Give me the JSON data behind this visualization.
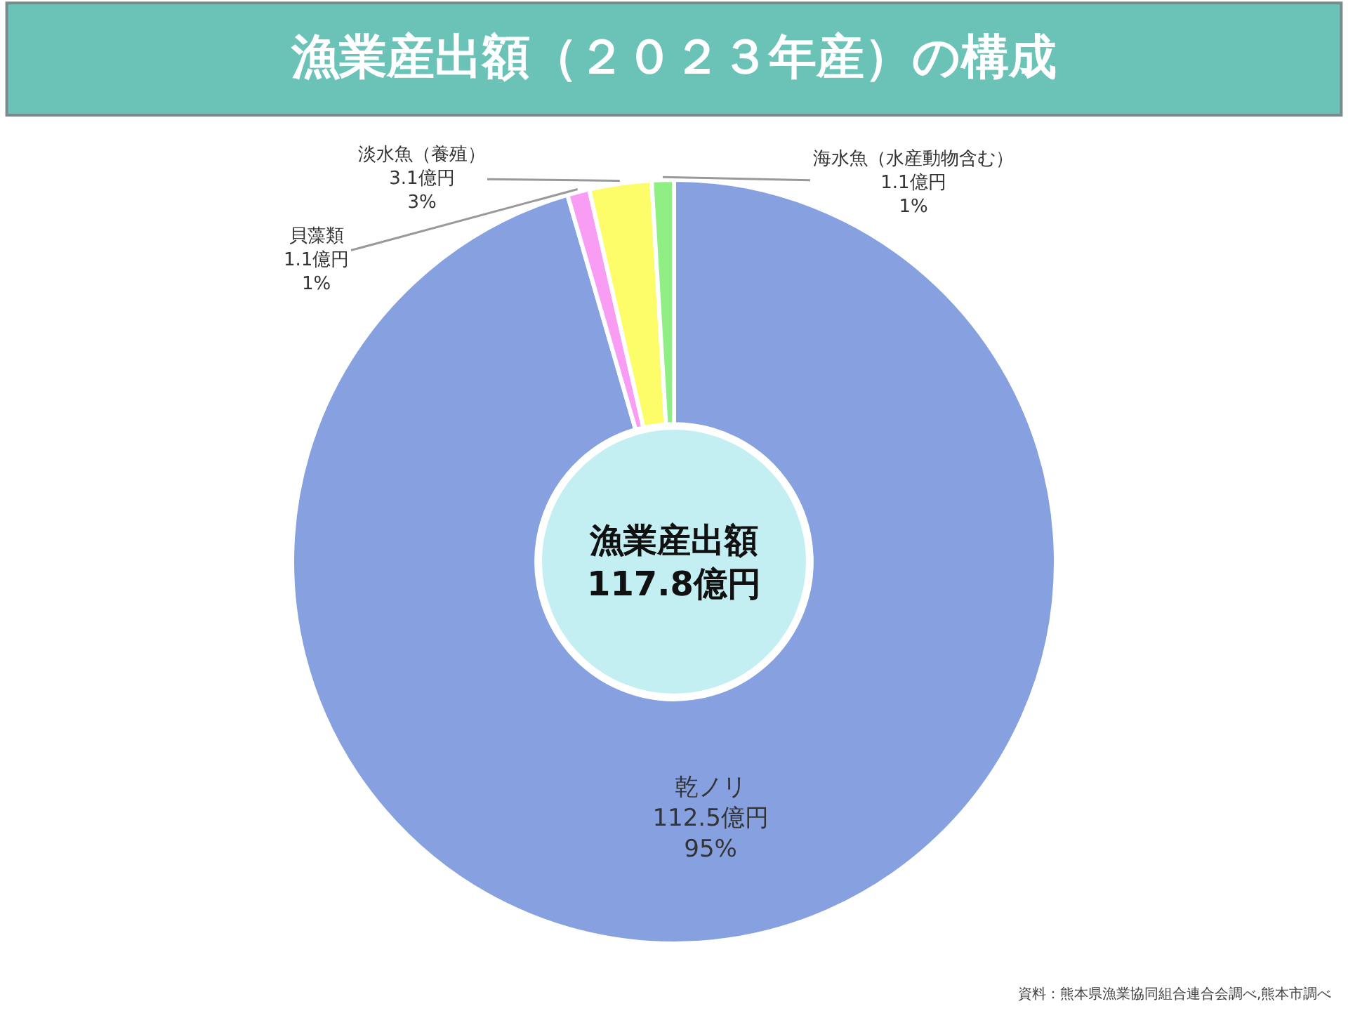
{
  "chart_data": {
    "type": "donut",
    "title": "漁業産出額（２０２３年産）の構成",
    "categories": [
      "乾ノリ",
      "貝藻類",
      "淡水魚（養殖）",
      "海水魚（水産動物含む）"
    ],
    "values": [
      112.5,
      1.1,
      3.1,
      1.1
    ],
    "colors": [
      "#86a0e0",
      "#f99cf3",
      "#fdfd6a",
      "#90ef84"
    ],
    "value_labels": [
      "112.5億円\n95%",
      "1.1億円\n1%",
      "3.1億円\n3%",
      "1.1億円\n1%"
    ],
    "annotations": [
      "漁業産出額\n117.8億円",
      "資料：熊本県漁業協同組合連合会調べ,熊本市調べ"
    ],
    "legend": false
  }
}
